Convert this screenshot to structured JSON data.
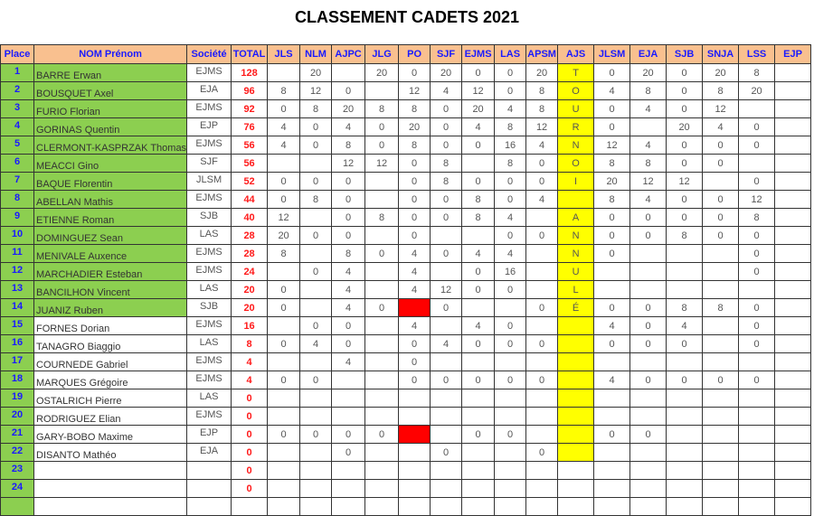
{
  "title": "CLASSEMENT CADETS 2021",
  "colors": {
    "header_bg": "#f9c08f",
    "header_text": "#1a1aff",
    "green": "#8ccf50",
    "total_text": "#ff1a1a",
    "ajs_yellow": "#ffff00",
    "red_cell": "#ff0000"
  },
  "headers": [
    "Place",
    "NOM Prénom",
    "Société",
    "TOTAL",
    "JLS",
    "NLM",
    "AJPC",
    "JLG",
    "PO",
    "SJF",
    "EJMS",
    "LAS",
    "APSM",
    "AJS",
    "JLSM",
    "EJA",
    "SJB",
    "SNJA",
    "LSS",
    "EJP"
  ],
  "rows": [
    {
      "place": "1",
      "name": "BARRE Erwan",
      "club": "EJMS",
      "total": "128",
      "green": true,
      "scores": [
        "",
        "20",
        "",
        "20",
        "0",
        "20",
        "0",
        "0",
        "20",
        "T",
        "0",
        "20",
        "0",
        "20",
        "8",
        ""
      ]
    },
    {
      "place": "2",
      "name": "BOUSQUET Axel",
      "club": "EJA",
      "total": "96",
      "green": true,
      "scores": [
        "8",
        "12",
        "0",
        "",
        "12",
        "4",
        "12",
        "0",
        "8",
        "O",
        "4",
        "8",
        "0",
        "8",
        "20",
        ""
      ]
    },
    {
      "place": "3",
      "name": "FURIO Florian",
      "club": "EJMS",
      "total": "92",
      "green": true,
      "scores": [
        "0",
        "8",
        "20",
        "8",
        "8",
        "0",
        "20",
        "4",
        "8",
        "U",
        "0",
        "4",
        "0",
        "12",
        "",
        ""
      ]
    },
    {
      "place": "4",
      "name": "GORINAS Quentin",
      "club": "EJP",
      "total": "76",
      "green": true,
      "scores": [
        "4",
        "0",
        "4",
        "0",
        "20",
        "0",
        "4",
        "8",
        "12",
        "R",
        "0",
        "",
        "20",
        "4",
        "0",
        ""
      ]
    },
    {
      "place": "5",
      "name": "CLERMONT-KASPRZAK Thomas",
      "club": "EJMS",
      "total": "56",
      "green": true,
      "scores": [
        "4",
        "0",
        "8",
        "0",
        "8",
        "0",
        "0",
        "16",
        "4",
        "N",
        "12",
        "4",
        "0",
        "0",
        "0",
        ""
      ]
    },
    {
      "place": "6",
      "name": "MEACCI Gino",
      "club": "SJF",
      "total": "56",
      "green": true,
      "scores": [
        "",
        "",
        "12",
        "12",
        "0",
        "8",
        "",
        "8",
        "0",
        "O",
        "8",
        "8",
        "0",
        "0",
        "",
        ""
      ]
    },
    {
      "place": "7",
      "name": "BAQUE Florentin",
      "club": "JLSM",
      "total": "52",
      "green": true,
      "scores": [
        "0",
        "0",
        "0",
        "",
        "0",
        "8",
        "0",
        "0",
        "0",
        "I",
        "20",
        "12",
        "12",
        "",
        "0",
        ""
      ]
    },
    {
      "place": "8",
      "name": "ABELLAN Mathis",
      "club": "EJMS",
      "total": "44",
      "green": true,
      "scores": [
        "0",
        "8",
        "0",
        "",
        "0",
        "0",
        "8",
        "0",
        "4",
        "",
        "8",
        "4",
        "0",
        "0",
        "12",
        ""
      ]
    },
    {
      "place": "9",
      "name": "ETIENNE Roman",
      "club": "SJB",
      "total": "40",
      "green": true,
      "scores": [
        "12",
        "",
        "0",
        "8",
        "0",
        "0",
        "8",
        "4",
        "",
        "A",
        "0",
        "0",
        "0",
        "0",
        "8",
        ""
      ]
    },
    {
      "place": "10",
      "name": "DOMINGUEZ Sean",
      "club": "LAS",
      "total": "28",
      "green": true,
      "scores": [
        "20",
        "0",
        "0",
        "",
        "0",
        "",
        "",
        "0",
        "0",
        "N",
        "0",
        "0",
        "8",
        "0",
        "0",
        ""
      ]
    },
    {
      "place": "11",
      "name": "MENIVALE Auxence",
      "club": "EJMS",
      "total": "28",
      "green": true,
      "scores": [
        "8",
        "",
        "8",
        "0",
        "4",
        "0",
        "4",
        "4",
        "",
        "N",
        "0",
        "",
        "",
        "",
        "0",
        ""
      ]
    },
    {
      "place": "12",
      "name": "MARCHADIER Esteban",
      "club": "EJMS",
      "total": "24",
      "green": true,
      "scores": [
        "",
        "0",
        "4",
        "",
        "4",
        "",
        "0",
        "16",
        "",
        "U",
        "",
        "",
        "",
        "",
        "0",
        ""
      ]
    },
    {
      "place": "13",
      "name": "BANCILHON Vincent",
      "club": "LAS",
      "total": "20",
      "green": true,
      "scores": [
        "0",
        "",
        "4",
        "",
        "4",
        "12",
        "0",
        "0",
        "",
        "L",
        "",
        "",
        "",
        "",
        "",
        ""
      ]
    },
    {
      "place": "14",
      "name": "JUANIZ Ruben",
      "club": "SJB",
      "total": "20",
      "green": true,
      "red_cols": [
        4
      ],
      "scores": [
        "0",
        "",
        "4",
        "0",
        "",
        "0",
        "",
        "",
        "0",
        "É",
        "0",
        "0",
        "8",
        "8",
        "0",
        ""
      ]
    },
    {
      "place": "15",
      "name": "FORNES Dorian",
      "club": "EJMS",
      "total": "16",
      "green": false,
      "scores": [
        "",
        "0",
        "0",
        "",
        "4",
        "",
        "4",
        "0",
        "",
        "",
        "4",
        "0",
        "4",
        "",
        "0",
        ""
      ]
    },
    {
      "place": "16",
      "name": "TANAGRO Biaggio",
      "club": "LAS",
      "total": "8",
      "green": false,
      "scores": [
        "0",
        "4",
        "0",
        "",
        "0",
        "4",
        "0",
        "0",
        "0",
        "",
        "0",
        "0",
        "0",
        "",
        "0",
        ""
      ]
    },
    {
      "place": "17",
      "name": "COURNEDE Gabriel",
      "club": "EJMS",
      "total": "4",
      "green": false,
      "scores": [
        "",
        "",
        "4",
        "",
        "0",
        "",
        "",
        "",
        "",
        "",
        "",
        "",
        "",
        "",
        "",
        ""
      ]
    },
    {
      "place": "18",
      "name": "MARQUES Grégoire",
      "club": "EJMS",
      "total": "4",
      "green": false,
      "scores": [
        "0",
        "0",
        "",
        "",
        "0",
        "0",
        "0",
        "0",
        "0",
        "",
        "4",
        "0",
        "0",
        "0",
        "0",
        ""
      ]
    },
    {
      "place": "19",
      "name": "OSTALRICH Pierre",
      "club": "LAS",
      "total": "0",
      "green": false,
      "scores": [
        "",
        "",
        "",
        "",
        "",
        "",
        "",
        "",
        "",
        "",
        "",
        "",
        "",
        "",
        "",
        ""
      ]
    },
    {
      "place": "20",
      "name": "RODRIGUEZ Elian",
      "club": "EJMS",
      "total": "0",
      "green": false,
      "scores": [
        "",
        "",
        "",
        "",
        "",
        "",
        "",
        "",
        "",
        "",
        "",
        "",
        "",
        "",
        "",
        ""
      ]
    },
    {
      "place": "21",
      "name": "GARY-BOBO Maxime",
      "club": "EJP",
      "total": "0",
      "green": false,
      "red_cols": [
        4
      ],
      "scores": [
        "0",
        "0",
        "0",
        "0",
        "",
        "",
        "0",
        "0",
        "",
        "",
        "0",
        "0",
        "",
        "",
        "",
        ""
      ]
    },
    {
      "place": "22",
      "name": "DISANTO Mathéo",
      "club": "EJA",
      "total": "0",
      "green": false,
      "scores": [
        "",
        "",
        "0",
        "",
        "",
        "0",
        "",
        "",
        "0",
        "",
        "",
        "",
        "",
        "",
        "",
        ""
      ]
    },
    {
      "place": "23",
      "name": "",
      "club": "",
      "total": "0",
      "green": false,
      "no_yellow": true,
      "scores": [
        "",
        "",
        "",
        "",
        "",
        "",
        "",
        "",
        "",
        "",
        "",
        "",
        "",
        "",
        "",
        ""
      ]
    },
    {
      "place": "24",
      "name": "",
      "club": "",
      "total": "0",
      "green": false,
      "no_yellow": true,
      "scores": [
        "",
        "",
        "",
        "",
        "",
        "",
        "",
        "",
        "",
        "",
        "",
        "",
        "",
        "",
        "",
        ""
      ]
    },
    {
      "place": "",
      "name": "",
      "club": "",
      "total": "",
      "green": false,
      "no_yellow": true,
      "scores": [
        "",
        "",
        "",
        "",
        "",
        "",
        "",
        "",
        "",
        "",
        "",
        "",
        "",
        "",
        "",
        ""
      ]
    }
  ]
}
